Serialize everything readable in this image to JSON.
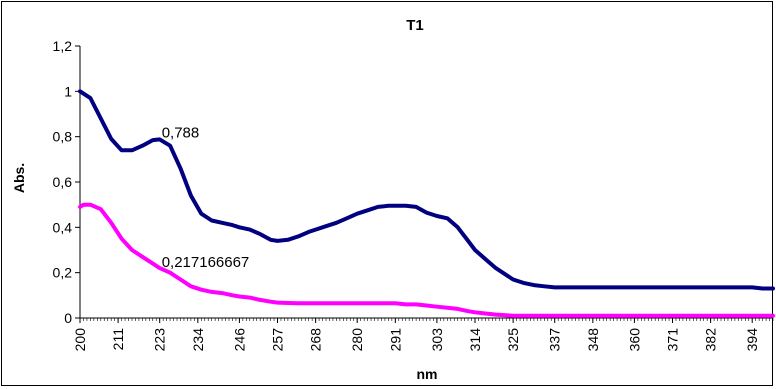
{
  "chart_data": {
    "type": "line",
    "title": "T1",
    "xlabel": "nm",
    "ylabel": "Abs.",
    "xlim": [
      200,
      400
    ],
    "ylim": [
      0,
      1.2
    ],
    "grid": false,
    "legend": "none",
    "x_ticks": [
      "200",
      "211",
      "223",
      "234",
      "246",
      "257",
      "268",
      "280",
      "291",
      "303",
      "314",
      "325",
      "337",
      "348",
      "360",
      "371",
      "382",
      "394"
    ],
    "y_ticks": [
      "0",
      "0,2",
      "0,4",
      "0,6",
      "0,8",
      "1",
      "1,2"
    ],
    "series": [
      {
        "color": "#000080",
        "x": [
          200,
          203,
          206,
          209,
          212,
          215,
          218,
          221,
          223,
          226,
          229,
          232,
          235,
          238,
          241,
          244,
          246,
          249,
          252,
          255,
          257,
          260,
          263,
          266,
          268,
          271,
          274,
          277,
          280,
          283,
          286,
          289,
          291,
          294,
          297,
          300,
          303,
          306,
          309,
          312,
          314,
          317,
          320,
          323,
          325,
          328,
          331,
          334,
          337,
          340,
          343,
          346,
          348,
          351,
          354,
          357,
          360,
          363,
          366,
          369,
          371,
          374,
          377,
          380,
          382,
          385,
          388,
          391,
          394,
          397,
          400
        ],
        "y": [
          1.0,
          0.97,
          0.88,
          0.79,
          0.74,
          0.74,
          0.76,
          0.785,
          0.788,
          0.76,
          0.66,
          0.54,
          0.46,
          0.43,
          0.42,
          0.41,
          0.4,
          0.39,
          0.37,
          0.345,
          0.34,
          0.345,
          0.36,
          0.38,
          0.39,
          0.405,
          0.42,
          0.44,
          0.46,
          0.475,
          0.49,
          0.495,
          0.495,
          0.495,
          0.49,
          0.465,
          0.45,
          0.44,
          0.4,
          0.34,
          0.3,
          0.26,
          0.22,
          0.19,
          0.17,
          0.155,
          0.145,
          0.14,
          0.135,
          0.135,
          0.135,
          0.135,
          0.135,
          0.135,
          0.135,
          0.135,
          0.135,
          0.135,
          0.135,
          0.135,
          0.135,
          0.135,
          0.135,
          0.135,
          0.135,
          0.135,
          0.135,
          0.135,
          0.135,
          0.13,
          0.13
        ]
      },
      {
        "color": "#FF00FF",
        "x": [
          200,
          201,
          203,
          206,
          209,
          212,
          215,
          218,
          221,
          223,
          226,
          229,
          232,
          235,
          238,
          241,
          244,
          246,
          249,
          252,
          255,
          257,
          260,
          263,
          266,
          268,
          271,
          274,
          277,
          280,
          283,
          286,
          289,
          291,
          294,
          297,
          300,
          303,
          306,
          309,
          312,
          314,
          317,
          320,
          323,
          325,
          328,
          331,
          334,
          337,
          340,
          343,
          346,
          348,
          351,
          354,
          357,
          360,
          363,
          366,
          369,
          371,
          374,
          377,
          380,
          382,
          385,
          388,
          391,
          394,
          397,
          400
        ],
        "y": [
          0.49,
          0.5,
          0.5,
          0.48,
          0.42,
          0.35,
          0.3,
          0.27,
          0.24,
          0.22,
          0.2,
          0.17,
          0.14,
          0.125,
          0.115,
          0.11,
          0.1,
          0.095,
          0.09,
          0.08,
          0.072,
          0.068,
          0.066,
          0.065,
          0.065,
          0.065,
          0.065,
          0.065,
          0.065,
          0.065,
          0.065,
          0.065,
          0.065,
          0.065,
          0.06,
          0.06,
          0.055,
          0.05,
          0.045,
          0.04,
          0.03,
          0.025,
          0.02,
          0.015,
          0.012,
          0.01,
          0.01,
          0.01,
          0.01,
          0.01,
          0.01,
          0.01,
          0.01,
          0.01,
          0.01,
          0.01,
          0.01,
          0.01,
          0.01,
          0.01,
          0.01,
          0.01,
          0.01,
          0.01,
          0.01,
          0.01,
          0.01,
          0.01,
          0.01,
          0.01,
          0.01,
          0.01
        ]
      }
    ],
    "annotations": [
      {
        "text": "0,788",
        "x": 223,
        "y": 0.788,
        "series": 0
      },
      {
        "text": "0,217166667",
        "x": 223,
        "y": 0.217166667,
        "series": 1
      }
    ]
  }
}
